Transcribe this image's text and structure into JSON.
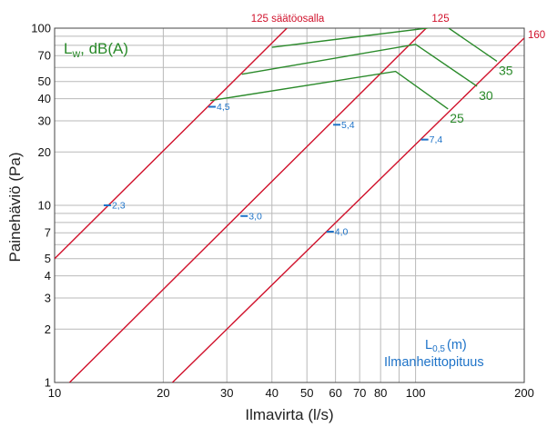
{
  "chart_data": {
    "type": "line",
    "title": "",
    "xlabel": "Ilmavirta (l/s)",
    "ylabel": "Painehäviö (Pa)",
    "x_scale": "log",
    "y_scale": "log",
    "xlim": [
      10,
      200
    ],
    "ylim": [
      1,
      100
    ],
    "grid": true,
    "x_ticks": [
      10,
      20,
      30,
      40,
      50,
      60,
      70,
      80,
      100,
      200
    ],
    "x_tick_labels": [
      "10",
      "20",
      "30",
      "40",
      "50",
      "60",
      "70",
      "80",
      "100",
      "200"
    ],
    "y_ticks": [
      1,
      2,
      3,
      4,
      5,
      7,
      10,
      20,
      30,
      40,
      50,
      70,
      100
    ],
    "y_tick_labels": [
      "1",
      "2",
      "3",
      "4",
      "5",
      "7",
      "10",
      "20",
      "30",
      "40",
      "50",
      "70",
      "100"
    ],
    "series": [
      {
        "name": "125 säätöosalla",
        "color": "#d0112b",
        "points": [
          [
            10,
            5.0
          ],
          [
            44,
            100
          ]
        ]
      },
      {
        "name": "125",
        "color": "#d0112b",
        "points": [
          [
            11,
            1
          ],
          [
            107,
            100
          ]
        ]
      },
      {
        "name": "160",
        "color": "#d0112b",
        "points": [
          [
            21.2,
            1
          ],
          [
            200,
            88
          ]
        ]
      }
    ],
    "sound_lines": [
      {
        "label": "25",
        "color": "#2a8a2a",
        "points": [
          [
            27,
            39
          ],
          [
            88,
            57
          ],
          [
            123,
            35
          ]
        ]
      },
      {
        "label": "30",
        "color": "#2a8a2a",
        "points": [
          [
            33,
            55
          ],
          [
            100,
            81
          ],
          [
            148,
            47
          ]
        ]
      },
      {
        "label": "35",
        "color": "#2a8a2a",
        "points": [
          [
            40,
            78
          ],
          [
            121,
            103
          ],
          [
            168,
            65
          ]
        ]
      }
    ],
    "throw_markers": [
      {
        "label": "2,3",
        "x": 14.0,
        "y": 10
      },
      {
        "label": "4,5",
        "x": 27.3,
        "y": 36
      },
      {
        "label": "3,0",
        "x": 33.5,
        "y": 8.7
      },
      {
        "label": "5,4",
        "x": 60.5,
        "y": 28.5
      },
      {
        "label": "4,0",
        "x": 58.0,
        "y": 7.1
      },
      {
        "label": "7,4",
        "x": 106.0,
        "y": 23.5
      }
    ],
    "legend": {
      "sound_title": "L",
      "sound_sub": "w",
      "sound_rest": ", dB(A)",
      "throw_title": "L",
      "throw_sub": "0,5",
      "throw_unit": "(m)",
      "throw_desc": "Ilmanheittopituus"
    }
  }
}
